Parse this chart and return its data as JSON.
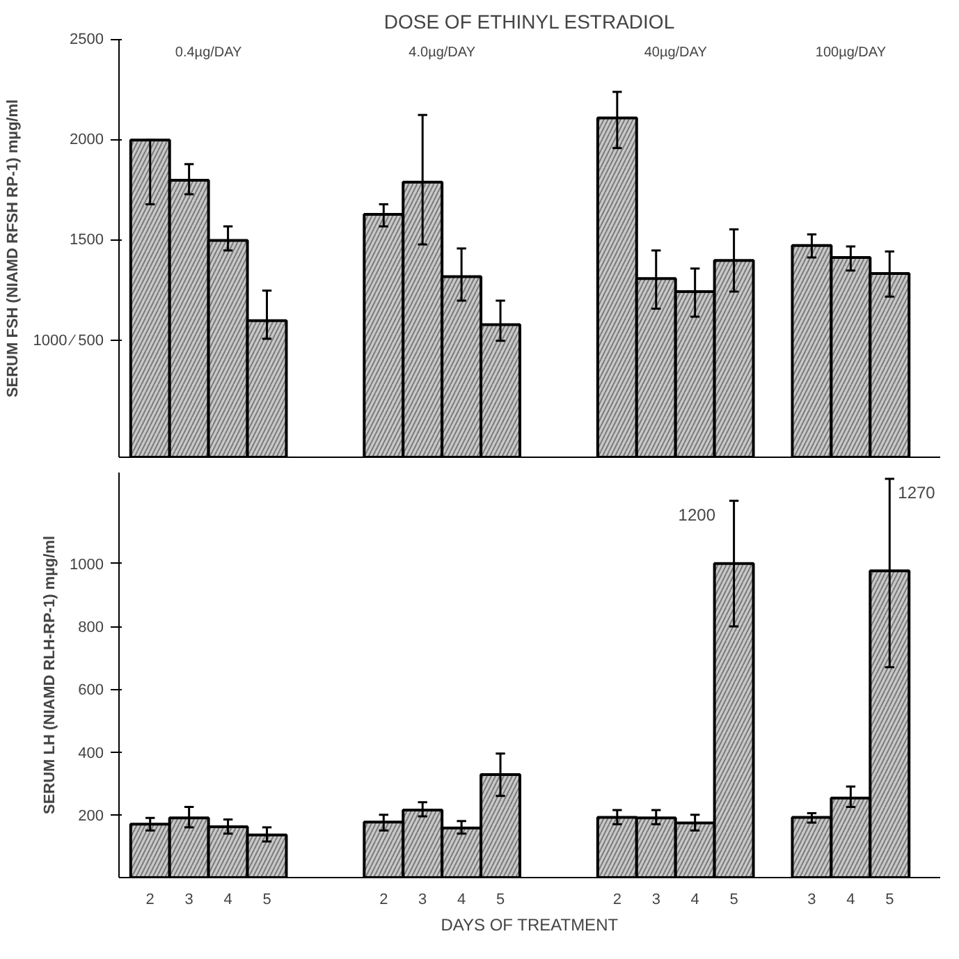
{
  "chart_data": [
    {
      "type": "bar",
      "title": "DOSE OF ETHINYL ESTRADIOL",
      "ylabel": "SERUM FSH (NIAMD RFSH RP-1) mµg/ml",
      "categories": [
        "2",
        "3",
        "4",
        "5",
        null,
        null,
        "2",
        "3",
        "4",
        "5",
        null,
        null,
        "2",
        "3",
        "4",
        "5",
        null,
        "3",
        "4",
        "5"
      ],
      "values": [
        2000,
        1800,
        1500,
        1100,
        null,
        null,
        1630,
        1790,
        1320,
        1080,
        null,
        null,
        2110,
        1310,
        1245,
        1400,
        null,
        1475,
        1415,
        1335
      ],
      "errors": [
        [
          1680,
          2000
        ],
        [
          1730,
          1880
        ],
        [
          1450,
          1570
        ],
        [
          1010,
          1250
        ],
        null,
        null,
        [
          1570,
          1680
        ],
        [
          1480,
          2125
        ],
        [
          1200,
          1460
        ],
        [
          1000,
          1200
        ],
        null,
        null,
        [
          1960,
          2240
        ],
        [
          1160,
          1450
        ],
        [
          1120,
          1360
        ],
        [
          1245,
          1555
        ],
        null,
        [
          1415,
          1530
        ],
        [
          1350,
          1470
        ],
        [
          1220,
          1445
        ]
      ],
      "color": "#c8c8c8",
      "ylim": [
        420,
        2500
      ],
      "yticks": [
        {
          "value": 1000,
          "label": "1000 ⁄ 500"
        },
        1500,
        2000,
        2500
      ],
      "tick_labels": "y",
      "grid": false,
      "annotations": [
        "0.4µg/DAY",
        "4.0µg/DAY",
        "40µg/DAY",
        "100µg/DAY"
      ]
    },
    {
      "type": "bar",
      "xlabel": "DAYS OF TREATMENT",
      "ylabel": "SERUM LH (NIAMD RLH-RP-1) mµg/ml",
      "categories": [
        "2",
        "3",
        "4",
        "5",
        null,
        null,
        "2",
        "3",
        "4",
        "5",
        null,
        null,
        "2",
        "3",
        "4",
        "5",
        null,
        "3",
        "4",
        "5"
      ],
      "values": [
        170,
        190,
        162,
        136,
        null,
        null,
        177,
        215,
        158,
        328,
        null,
        null,
        192,
        190,
        174,
        1000,
        null,
        192,
        253,
        977
      ],
      "errors": [
        [
          150,
          190
        ],
        [
          160,
          225
        ],
        [
          140,
          185
        ],
        [
          115,
          160
        ],
        null,
        null,
        [
          150,
          200
        ],
        [
          195,
          240
        ],
        [
          140,
          180
        ],
        [
          260,
          395
        ],
        null,
        null,
        [
          170,
          215
        ],
        [
          170,
          215
        ],
        [
          150,
          200
        ],
        [
          800,
          1200
        ],
        null,
        [
          175,
          205
        ],
        [
          225,
          290
        ],
        [
          670,
          1270
        ]
      ],
      "color": "#c8c8c8",
      "ylim": [
        0,
        1290
      ],
      "yticks": [
        200,
        400,
        600,
        800,
        1000
      ],
      "grid": false,
      "annotations": [
        "1200",
        "1270"
      ]
    }
  ]
}
